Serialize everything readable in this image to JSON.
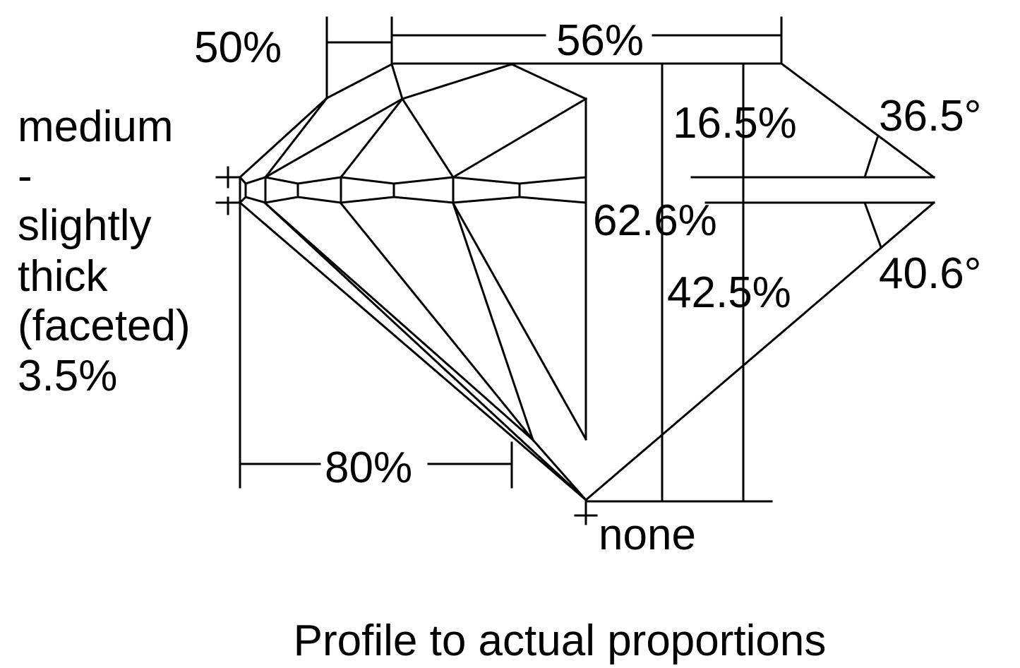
{
  "labels": {
    "crown_height_half": "50%",
    "table": "56%",
    "crown_height": "16.5%",
    "crown_angle": "36.5°",
    "total_depth": "62.6%",
    "pavilion_depth": "42.5%",
    "pavilion_angle": "40.6°",
    "lower_half": "80%",
    "culet": "none",
    "girdle": [
      "medium",
      "-",
      "slightly",
      "thick",
      "(faceted)",
      "3.5%"
    ]
  },
  "caption": "Profile to actual proportions",
  "colors": {
    "stroke": "#000000",
    "background": "#ffffff"
  }
}
